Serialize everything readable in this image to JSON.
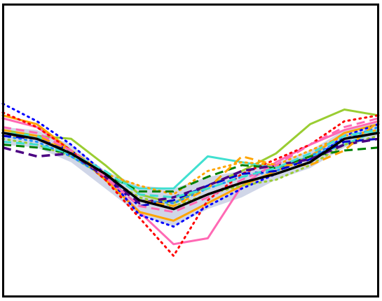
{
  "chart_data": {
    "type": "line",
    "title": "",
    "xlabel": "",
    "ylabel": "",
    "x": [
      0,
      1,
      2,
      3,
      4,
      5,
      6,
      7,
      8,
      9,
      10,
      11
    ],
    "ylim": [
      0,
      1
    ],
    "grid": false,
    "legend": "none",
    "band": {
      "color": "#aab4d6",
      "upper": [
        0.58,
        0.57,
        0.52,
        0.43,
        0.38,
        0.37,
        0.41,
        0.43,
        0.46,
        0.5,
        0.57,
        0.6
      ],
      "lower": [
        0.52,
        0.51,
        0.46,
        0.37,
        0.28,
        0.24,
        0.3,
        0.34,
        0.4,
        0.44,
        0.51,
        0.55
      ]
    },
    "series": [
      {
        "color": "#000000",
        "style": "solid",
        "width": 3.5,
        "values": [
          0.56,
          0.54,
          0.49,
          0.42,
          0.33,
          0.3,
          0.35,
          0.39,
          0.42,
          0.46,
          0.54,
          0.56
        ]
      },
      {
        "color": "#9acd32",
        "style": "solid",
        "width": 3,
        "values": [
          0.57,
          0.55,
          0.54,
          0.45,
          0.35,
          0.32,
          0.38,
          0.43,
          0.49,
          0.59,
          0.64,
          0.62
        ]
      },
      {
        "color": "#ff69b4",
        "style": "solid",
        "width": 3,
        "values": [
          0.61,
          0.58,
          0.5,
          0.41,
          0.29,
          0.18,
          0.2,
          0.38,
          0.46,
          0.52,
          0.57,
          0.6
        ]
      },
      {
        "color": "#40e0d0",
        "style": "solid",
        "width": 3,
        "values": [
          0.56,
          0.55,
          0.48,
          0.41,
          0.37,
          0.37,
          0.48,
          0.46,
          0.44,
          0.48,
          0.52,
          0.57
        ]
      },
      {
        "color": "#ffa500",
        "style": "solid",
        "width": 3,
        "values": [
          0.62,
          0.59,
          0.5,
          0.4,
          0.29,
          0.26,
          0.32,
          0.38,
          0.43,
          0.48,
          0.56,
          0.59
        ]
      },
      {
        "color": "#ff0000",
        "style": "dotted",
        "width": 3,
        "values": [
          0.63,
          0.58,
          0.5,
          0.4,
          0.27,
          0.14,
          0.33,
          0.42,
          0.47,
          0.52,
          0.6,
          0.62
        ]
      },
      {
        "color": "#0000ff",
        "style": "dotted",
        "width": 3,
        "values": [
          0.66,
          0.6,
          0.52,
          0.42,
          0.28,
          0.24,
          0.31,
          0.37,
          0.42,
          0.46,
          0.55,
          0.59
        ]
      },
      {
        "color": "#ffa500",
        "style": "dotted",
        "width": 3,
        "values": [
          0.55,
          0.54,
          0.5,
          0.42,
          0.38,
          0.35,
          0.43,
          0.46,
          0.45,
          0.5,
          0.55,
          0.57
        ]
      },
      {
        "color": "#9acd32",
        "style": "dotted",
        "width": 3,
        "values": [
          0.54,
          0.52,
          0.48,
          0.41,
          0.34,
          0.31,
          0.35,
          0.38,
          0.4,
          0.45,
          0.52,
          0.55
        ]
      },
      {
        "color": "#1e90ff",
        "style": "dotted",
        "width": 3,
        "values": [
          0.55,
          0.53,
          0.48,
          0.41,
          0.33,
          0.32,
          0.37,
          0.41,
          0.43,
          0.48,
          0.54,
          0.58
        ]
      },
      {
        "color": "#008000",
        "style": "dashed",
        "width": 3,
        "values": [
          0.52,
          0.51,
          0.49,
          0.42,
          0.36,
          0.36,
          0.41,
          0.45,
          0.44,
          0.48,
          0.5,
          0.51
        ]
      },
      {
        "color": "#0000cd",
        "style": "dashed",
        "width": 3,
        "values": [
          0.55,
          0.54,
          0.5,
          0.41,
          0.31,
          0.33,
          0.38,
          0.42,
          0.43,
          0.47,
          0.53,
          0.54
        ]
      },
      {
        "color": "#4b0082",
        "style": "dashed",
        "width": 3.5,
        "values": [
          0.51,
          0.48,
          0.49,
          0.41,
          0.32,
          0.34,
          0.38,
          0.43,
          0.45,
          0.47,
          0.52,
          0.54
        ]
      },
      {
        "color": "#ffa500",
        "style": "dashed",
        "width": 3,
        "values": [
          0.57,
          0.55,
          0.5,
          0.42,
          0.33,
          0.31,
          0.37,
          0.48,
          0.45,
          0.45,
          0.5,
          0.6
        ]
      },
      {
        "color": "#ff69b4",
        "style": "dashed",
        "width": 3,
        "values": [
          0.58,
          0.56,
          0.5,
          0.41,
          0.31,
          0.29,
          0.34,
          0.4,
          0.45,
          0.52,
          0.58,
          0.61
        ]
      },
      {
        "color": "#40e0d0",
        "style": "dashed",
        "width": 3,
        "values": [
          0.53,
          0.52,
          0.49,
          0.43,
          0.35,
          0.34,
          0.37,
          0.41,
          0.44,
          0.49,
          0.55,
          0.57
        ]
      }
    ]
  }
}
